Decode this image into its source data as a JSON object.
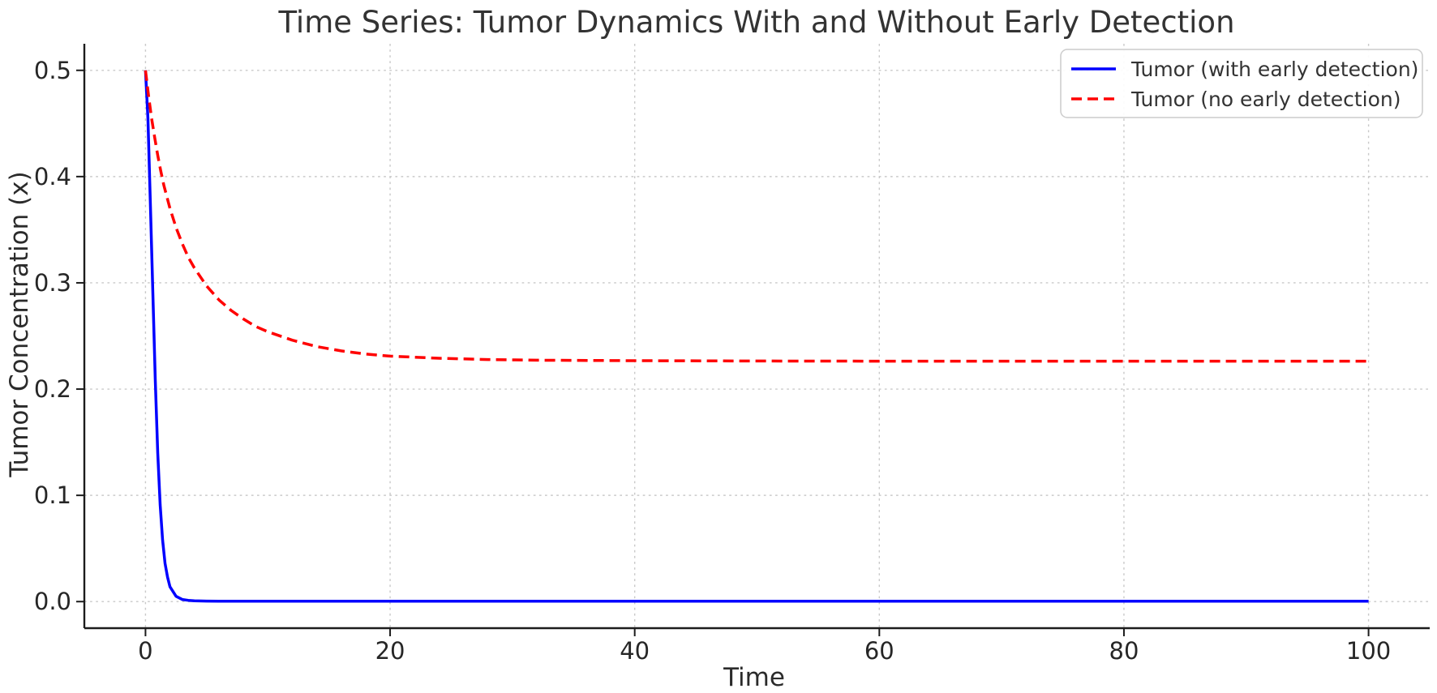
{
  "chart_data": {
    "type": "line",
    "title": "Time Series: Tumor Dynamics With and Without Early Detection",
    "xlabel": "Time",
    "ylabel": "Tumor Concentration (x)",
    "xlim": [
      -5,
      105
    ],
    "ylim": [
      -0.025,
      0.525
    ],
    "x_ticks": [
      0,
      20,
      40,
      60,
      80,
      100
    ],
    "x_tick_labels": [
      "0",
      "20",
      "40",
      "60",
      "80",
      "100"
    ],
    "y_ticks": [
      0.0,
      0.1,
      0.2,
      0.3,
      0.4,
      0.5
    ],
    "y_tick_labels": [
      "0.0",
      "0.1",
      "0.2",
      "0.3",
      "0.4",
      "0.5"
    ],
    "grid": true,
    "grid_style": "dotted",
    "legend_position": "upper right",
    "series": [
      {
        "name": "Tumor (with early detection)",
        "color": "#0000ff",
        "style": "solid",
        "x": [
          0,
          0.2,
          0.4,
          0.6,
          0.8,
          1.0,
          1.2,
          1.4,
          1.6,
          1.8,
          2.0,
          2.5,
          3.0,
          3.5,
          4.0,
          5.0,
          6.0,
          8.0,
          10,
          15,
          20,
          30,
          40,
          50,
          60,
          70,
          80,
          90,
          100
        ],
        "y": [
          0.5,
          0.455,
          0.375,
          0.29,
          0.208,
          0.14,
          0.091,
          0.058,
          0.036,
          0.023,
          0.014,
          0.005,
          0.002,
          0.0012,
          0.0008,
          0.0005,
          0.0004,
          0.0003,
          0.0003,
          0.0003,
          0.0003,
          0.0003,
          0.0003,
          0.0003,
          0.0003,
          0.0003,
          0.0003,
          0.0003,
          0.0003
        ]
      },
      {
        "name": "Tumor (no early detection)",
        "color": "#ff0000",
        "style": "dashed",
        "x": [
          0,
          0.25,
          0.5,
          0.75,
          1.0,
          1.25,
          1.5,
          2.0,
          2.5,
          3.0,
          3.5,
          4.0,
          5.0,
          6.0,
          7.0,
          8.0,
          9.0,
          10,
          12,
          14,
          16,
          18,
          20,
          24,
          28,
          32,
          40,
          50,
          60,
          80,
          100
        ],
        "y": [
          0.5,
          0.476,
          0.455,
          0.437,
          0.42,
          0.405,
          0.392,
          0.37,
          0.352,
          0.337,
          0.324,
          0.314,
          0.297,
          0.284,
          0.274,
          0.266,
          0.259,
          0.254,
          0.246,
          0.24,
          0.236,
          0.233,
          0.231,
          0.229,
          0.2278,
          0.2272,
          0.2267,
          0.2264,
          0.2263,
          0.2263,
          0.2263
        ]
      }
    ],
    "colors": {
      "grid": "#c9c9c9",
      "spine": "#1c1c1c",
      "background": "#ffffff"
    }
  }
}
